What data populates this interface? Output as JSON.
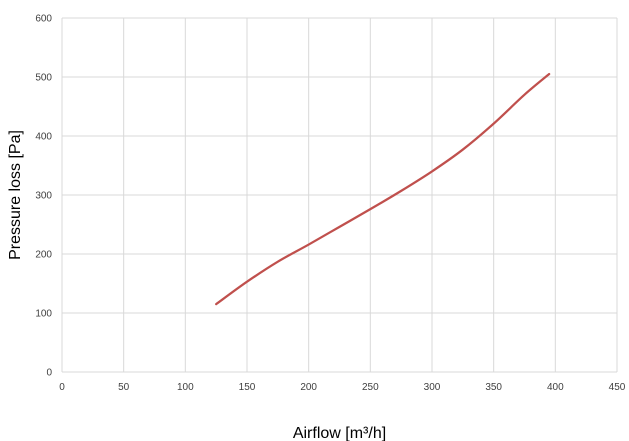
{
  "chart_data": {
    "type": "line",
    "title": "",
    "xlabel": "Airflow [m³/h]",
    "ylabel": "Pressure loss [Pa]",
    "xlim": [
      0,
      450
    ],
    "ylim": [
      0,
      600
    ],
    "x_ticks": [
      "0",
      "50",
      "100",
      "150",
      "200",
      "250",
      "300",
      "350",
      "400",
      "450"
    ],
    "y_ticks": [
      "0",
      "100",
      "200",
      "300",
      "400",
      "500",
      "600"
    ],
    "grid": true,
    "legend": "none",
    "series": [
      {
        "color": "#c0504d",
        "x": [
          125,
          150,
          175,
          200,
          225,
          250,
          275,
          300,
          325,
          350,
          375,
          395
        ],
        "y": [
          115,
          153,
          187,
          216,
          246,
          276,
          307,
          340,
          377,
          421,
          470,
          505
        ]
      }
    ]
  }
}
